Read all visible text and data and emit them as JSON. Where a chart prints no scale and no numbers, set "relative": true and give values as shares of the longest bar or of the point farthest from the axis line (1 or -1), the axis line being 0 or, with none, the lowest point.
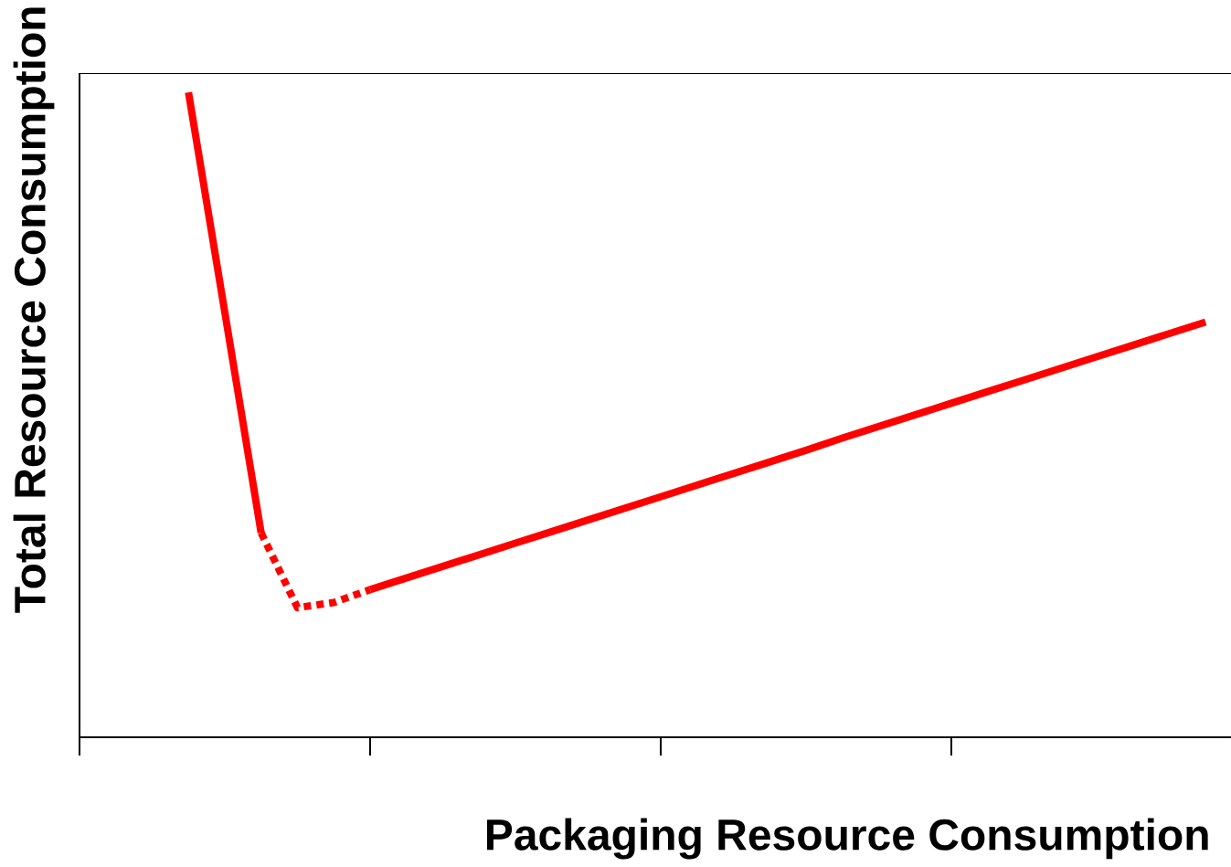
{
  "chart_data": {
    "type": "line",
    "xlabel": "Packaging Resource Consumption",
    "ylabel": "Total Resource Consumption",
    "relative": true,
    "categories": [
      null,
      null,
      null,
      null,
      null,
      null,
      null,
      null,
      null,
      null,
      null,
      null,
      null,
      null,
      null,
      null,
      null,
      null,
      null,
      null,
      null,
      null,
      null,
      null,
      null,
      null,
      null,
      null,
      null,
      null,
      null,
      null
    ],
    "grid": false,
    "marker": "none",
    "series": [
      {
        "color": "#ff0000",
        "line_style": "solid",
        "values": [
          null,
          null,
          null,
          1.0,
          0.659,
          0.317,
          null,
          null,
          null,
          null,
          null,
          null,
          null,
          null,
          null,
          null,
          null,
          null,
          null,
          null,
          null,
          null,
          null,
          null,
          null,
          null,
          null,
          null,
          null,
          null,
          null,
          null
        ]
      },
      {
        "color": "#ff0000",
        "line_style": "dotted",
        "values": [
          null,
          null,
          null,
          null,
          null,
          0.317,
          0.201,
          0.209,
          0.229,
          null,
          null,
          null,
          null,
          null,
          null,
          null,
          null,
          null,
          null,
          null,
          null,
          null,
          null,
          null,
          null,
          null,
          null,
          null,
          null,
          null,
          null,
          null
        ]
      },
      {
        "color": "#ff0000",
        "line_style": "solid",
        "values": [
          null,
          null,
          null,
          null,
          null,
          null,
          null,
          null,
          0.229,
          0.247,
          0.265,
          0.283,
          0.301,
          0.319,
          0.337,
          0.355,
          0.373,
          0.391,
          0.409,
          0.427,
          0.445,
          0.464,
          0.482,
          0.5,
          0.518,
          0.536,
          0.554,
          0.572,
          0.59,
          0.608,
          0.626,
          0.644
        ]
      }
    ]
  }
}
